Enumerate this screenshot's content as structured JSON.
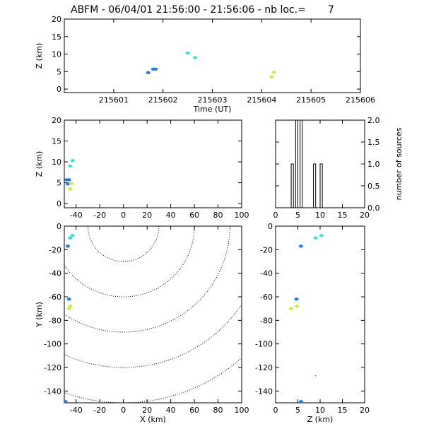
{
  "figure": {
    "title": "ABFM - 06/04/01 21:56:00 - 21:56:06 - nb loc.=       7"
  },
  "colors": {
    "blue": "#1e7ee8",
    "cyan": "#33e6d2",
    "yellow": "#c7f03a",
    "axis": "#000000"
  },
  "chart_data": [
    {
      "id": "time-z",
      "type": "scatter",
      "xlabel": "Time (UT)",
      "ylabel": "Z (km)",
      "xlim": [
        215600,
        215606
      ],
      "ylim": [
        -1,
        20
      ],
      "xticks": [
        215601,
        215602,
        215603,
        215604,
        215605,
        215606
      ],
      "yticks": [
        0,
        5,
        10,
        15,
        20
      ],
      "points": [
        {
          "x": 215601.7,
          "y": 4.7,
          "color": "blue"
        },
        {
          "x": 215601.8,
          "y": 5.7,
          "color": "blue"
        },
        {
          "x": 215601.85,
          "y": 5.7,
          "color": "blue"
        },
        {
          "x": 215602.5,
          "y": 10.3,
          "color": "cyan"
        },
        {
          "x": 215602.65,
          "y": 9.0,
          "color": "cyan"
        },
        {
          "x": 215604.25,
          "y": 4.8,
          "color": "yellow"
        },
        {
          "x": 215604.2,
          "y": 3.5,
          "color": "yellow"
        }
      ]
    },
    {
      "id": "x-z",
      "type": "scatter",
      "xlabel": "",
      "ylabel": "Z (km)",
      "xlim": [
        -50,
        100
      ],
      "ylim": [
        -1,
        20
      ],
      "xticks": [
        -40,
        -20,
        0,
        20,
        40,
        60,
        80,
        100
      ],
      "yticks": [
        0,
        5,
        10,
        15,
        20
      ],
      "points": [
        {
          "x": -48,
          "y": 5.7,
          "color": "blue"
        },
        {
          "x": -46,
          "y": 5.7,
          "color": "blue"
        },
        {
          "x": -47,
          "y": 4.7,
          "color": "blue"
        },
        {
          "x": -45,
          "y": 9.0,
          "color": "cyan"
        },
        {
          "x": -43,
          "y": 10.3,
          "color": "cyan"
        },
        {
          "x": -44,
          "y": 4.8,
          "color": "yellow"
        },
        {
          "x": -45,
          "y": 3.5,
          "color": "yellow"
        }
      ]
    },
    {
      "id": "z-histogram",
      "type": "bar",
      "xlabel": "",
      "ylabel": "number of sources",
      "xlim": [
        0,
        20
      ],
      "ylim": [
        0,
        2
      ],
      "xticks": [
        0,
        5,
        10,
        15,
        20
      ],
      "yticks": [
        "0.0",
        "0.5",
        "1.0",
        "1.5",
        "2.0"
      ],
      "bins": [
        {
          "from": 3.5,
          "to": 4,
          "count": 1
        },
        {
          "from": 4.5,
          "to": 5,
          "count": 2
        },
        {
          "from": 5.5,
          "to": 6,
          "count": 2
        },
        {
          "from": 8.5,
          "to": 9,
          "count": 1
        },
        {
          "from": 10,
          "to": 10.5,
          "count": 1
        }
      ]
    },
    {
      "id": "x-y",
      "type": "scatter",
      "xlabel": "X (km)",
      "ylabel": "Y (km)",
      "xlim": [
        -50,
        100
      ],
      "ylim": [
        -150,
        0
      ],
      "xticks": [
        -40,
        -20,
        0,
        20,
        40,
        60,
        80,
        100
      ],
      "yticks": [
        0,
        -20,
        -40,
        -60,
        -80,
        -100,
        -120,
        -140
      ],
      "range_rings": [
        30,
        60,
        90,
        120,
        150
      ],
      "points": [
        {
          "x": -46,
          "y": -62,
          "color": "blue"
        },
        {
          "x": -47,
          "y": -17,
          "color": "blue"
        },
        {
          "x": -49,
          "y": -149,
          "color": "blue"
        },
        {
          "x": -43,
          "y": -8,
          "color": "cyan"
        },
        {
          "x": -45,
          "y": -10,
          "color": "cyan"
        },
        {
          "x": -45,
          "y": -68,
          "color": "yellow"
        },
        {
          "x": -46,
          "y": -70,
          "color": "yellow"
        }
      ]
    },
    {
      "id": "z-y",
      "type": "scatter",
      "xlabel": "Z (km)",
      "ylabel": "",
      "xlim": [
        0,
        20
      ],
      "ylim": [
        -150,
        0
      ],
      "xticks": [
        0,
        5,
        10,
        15,
        20
      ],
      "yticks": [
        0,
        -20,
        -40,
        -60,
        -80,
        -100,
        -120,
        -140
      ],
      "points": [
        {
          "x": 4.7,
          "y": -62,
          "color": "blue"
        },
        {
          "x": 5.7,
          "y": -17,
          "color": "blue"
        },
        {
          "x": 5.7,
          "y": -149,
          "color": "blue"
        },
        {
          "x": 10.3,
          "y": -8,
          "color": "cyan"
        },
        {
          "x": 9.0,
          "y": -10,
          "color": "cyan"
        },
        {
          "x": 4.8,
          "y": -68,
          "color": "yellow"
        },
        {
          "x": 3.5,
          "y": -70,
          "color": "yellow"
        }
      ]
    }
  ]
}
